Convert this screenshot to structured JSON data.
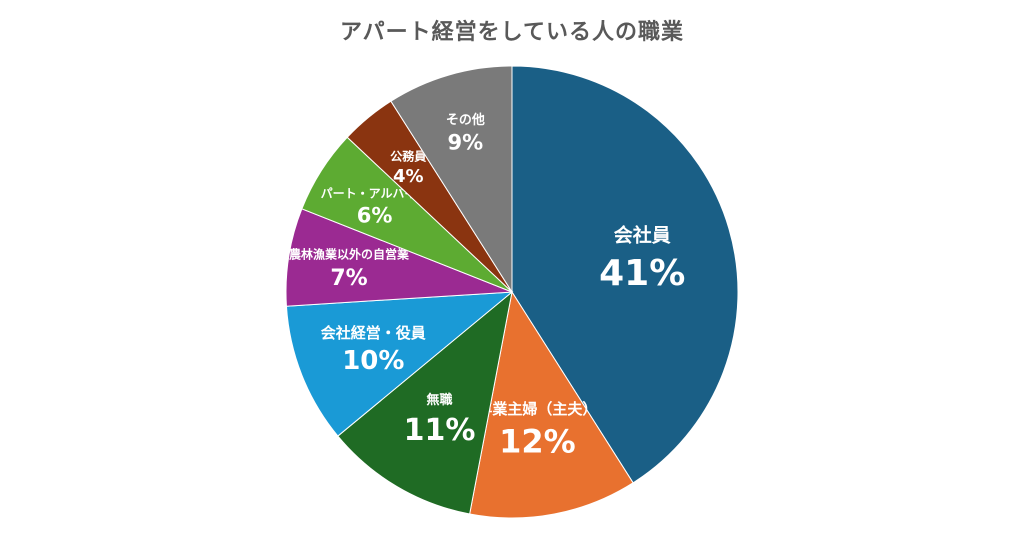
{
  "chart_data": {
    "type": "pie",
    "title": "アパート経営をしている人の職業",
    "slices": [
      {
        "label": "会社員",
        "value": 41,
        "value_label": "41%",
        "color": "#1a5f86"
      },
      {
        "label": "専業主婦（主夫）",
        "value": 12,
        "value_label": "12%",
        "color": "#e8712f"
      },
      {
        "label": "無職",
        "value": 11,
        "value_label": "11%",
        "color": "#1f6b24"
      },
      {
        "label": "会社経営・役員",
        "value": 10,
        "value_label": "10%",
        "color": "#1a9ad6"
      },
      {
        "label": "農林漁業以外の自営業",
        "value": 7,
        "value_label": "7%",
        "color": "#9b2a92"
      },
      {
        "label": "パート・アルバイト",
        "value": 6,
        "value_label": "6%",
        "color": "#5dab32"
      },
      {
        "label": "公務員",
        "value": 4,
        "value_label": "4%",
        "color": "#8a3410"
      },
      {
        "label": "その他",
        "value": 9,
        "value_label": "9%",
        "color": "#7a7a7a"
      }
    ],
    "start": "12 o'clock",
    "direction": "clockwise",
    "legend": "none"
  }
}
